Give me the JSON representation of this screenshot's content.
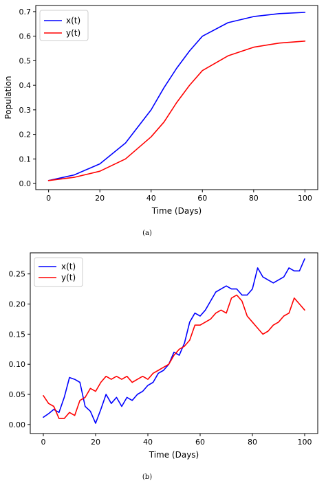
{
  "chart_data": [
    {
      "type": "line",
      "caption": "(a)",
      "xlabel": "Time (Days)",
      "ylabel": "Population",
      "xlim": [
        -5,
        105
      ],
      "ylim": [
        -0.025,
        0.725
      ],
      "xticks": [
        0,
        20,
        40,
        60,
        80,
        100
      ],
      "xtick_labels": [
        "0",
        "20",
        "40",
        "60",
        "80",
        "100"
      ],
      "yticks": [
        0.0,
        0.1,
        0.2,
        0.3,
        0.4,
        0.5,
        0.6,
        0.7
      ],
      "ytick_labels": [
        "0.0",
        "0.1",
        "0.2",
        "0.3",
        "0.4",
        "0.5",
        "0.6",
        "0.7"
      ],
      "grid": false,
      "legend": "top-left",
      "x": [
        0,
        10,
        20,
        30,
        40,
        45,
        50,
        55,
        60,
        70,
        80,
        90,
        100
      ],
      "series": [
        {
          "name": "x(t)",
          "color": "#0000ff",
          "values": [
            0.012,
            0.035,
            0.08,
            0.165,
            0.3,
            0.39,
            0.47,
            0.54,
            0.6,
            0.655,
            0.68,
            0.692,
            0.697
          ]
        },
        {
          "name": "y(t)",
          "color": "#ff0000",
          "values": [
            0.012,
            0.025,
            0.05,
            0.1,
            0.19,
            0.25,
            0.33,
            0.4,
            0.46,
            0.52,
            0.555,
            0.572,
            0.58
          ]
        }
      ]
    },
    {
      "type": "line",
      "caption": "(b)",
      "xlabel": "Time (Days)",
      "ylabel": "",
      "xlim": [
        -5,
        105
      ],
      "ylim": [
        -0.015,
        0.285
      ],
      "xticks": [
        0,
        20,
        40,
        60,
        80,
        100
      ],
      "xtick_labels": [
        "0",
        "20",
        "40",
        "60",
        "80",
        "100"
      ],
      "yticks": [
        0.0,
        0.05,
        0.1,
        0.15,
        0.2,
        0.25
      ],
      "ytick_labels": [
        "0.00",
        "0.05",
        "0.10",
        "0.15",
        "0.20",
        "0.25"
      ],
      "grid": false,
      "legend": "top-left",
      "x": [
        0,
        2,
        4,
        6,
        8,
        10,
        12,
        14,
        16,
        18,
        20,
        22,
        24,
        26,
        28,
        30,
        32,
        34,
        36,
        38,
        40,
        42,
        44,
        46,
        48,
        50,
        52,
        54,
        56,
        58,
        60,
        62,
        64,
        66,
        68,
        70,
        72,
        74,
        76,
        78,
        80,
        82,
        84,
        86,
        88,
        90,
        92,
        94,
        96,
        98,
        100
      ],
      "series": [
        {
          "name": "x(t)",
          "color": "#0000ff",
          "values": [
            0.012,
            0.018,
            0.025,
            0.02,
            0.045,
            0.078,
            0.075,
            0.07,
            0.03,
            0.022,
            0.002,
            0.025,
            0.05,
            0.035,
            0.045,
            0.03,
            0.045,
            0.04,
            0.05,
            0.055,
            0.065,
            0.07,
            0.085,
            0.09,
            0.1,
            0.12,
            0.115,
            0.135,
            0.17,
            0.185,
            0.18,
            0.19,
            0.205,
            0.22,
            0.225,
            0.23,
            0.225,
            0.225,
            0.215,
            0.215,
            0.225,
            0.26,
            0.245,
            0.24,
            0.235,
            0.24,
            0.245,
            0.26,
            0.255,
            0.255,
            0.275
          ]
        },
        {
          "name": "y(t)",
          "color": "#ff0000",
          "values": [
            0.048,
            0.035,
            0.03,
            0.01,
            0.01,
            0.02,
            0.015,
            0.04,
            0.045,
            0.06,
            0.055,
            0.07,
            0.08,
            0.075,
            0.08,
            0.075,
            0.08,
            0.07,
            0.075,
            0.08,
            0.075,
            0.085,
            0.09,
            0.095,
            0.1,
            0.115,
            0.125,
            0.13,
            0.14,
            0.165,
            0.165,
            0.17,
            0.175,
            0.185,
            0.19,
            0.185,
            0.21,
            0.215,
            0.205,
            0.18,
            0.17,
            0.16,
            0.15,
            0.155,
            0.165,
            0.17,
            0.18,
            0.185,
            0.21,
            0.2,
            0.19
          ]
        }
      ]
    }
  ]
}
